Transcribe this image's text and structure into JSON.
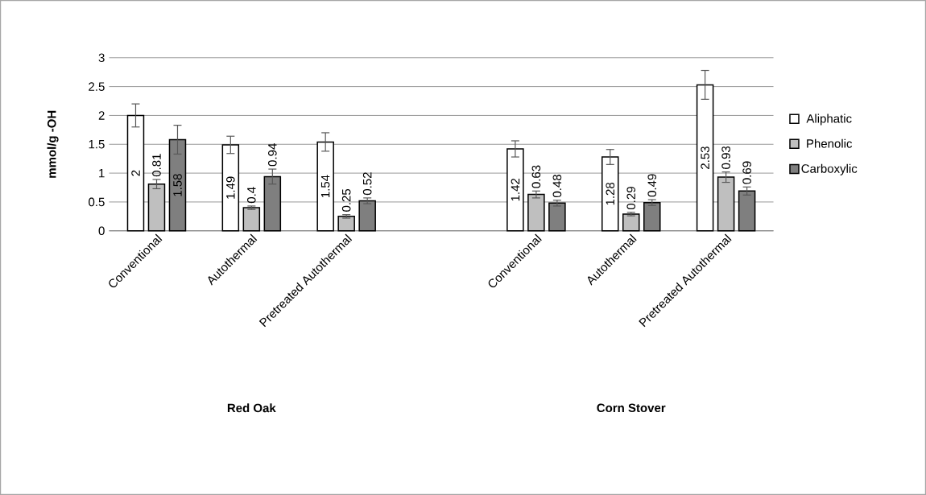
{
  "chart_data": {
    "type": "bar",
    "ylabel": "mmol/g -OH",
    "categories": [
      "Conventional",
      "Autothermal",
      "Pretreated Autothermal",
      null,
      "Conventional",
      "Autothermal",
      "Pretreated Autothermal"
    ],
    "series": [
      {
        "name": "Aliphatic",
        "color": "#ffffff",
        "values": [
          2,
          1.49,
          1.54,
          null,
          1.42,
          1.28,
          2.53
        ],
        "errors": [
          0.2,
          0.15,
          0.16,
          null,
          0.14,
          0.13,
          0.25
        ]
      },
      {
        "name": "Phenolic",
        "color": "#bfbfbf",
        "values": [
          0.81,
          0.4,
          0.25,
          null,
          0.63,
          0.29,
          0.93
        ],
        "errors": [
          0.08,
          0.03,
          0.03,
          null,
          0.06,
          0.03,
          0.09
        ]
      },
      {
        "name": "Carboxylic",
        "color": "#7f7f7f",
        "values": [
          1.58,
          0.94,
          0.52,
          null,
          0.48,
          0.49,
          0.69
        ],
        "errors": [
          0.25,
          0.13,
          0.05,
          null,
          0.05,
          0.05,
          0.07
        ]
      }
    ],
    "ylim": [
      0,
      3
    ],
    "yticks": [
      0,
      0.5,
      1,
      1.5,
      2,
      2.5,
      3
    ],
    "grid": "y",
    "legend": "right",
    "data_labels": true,
    "annotations": [
      "Red Oak",
      "Corn Stover"
    ]
  }
}
